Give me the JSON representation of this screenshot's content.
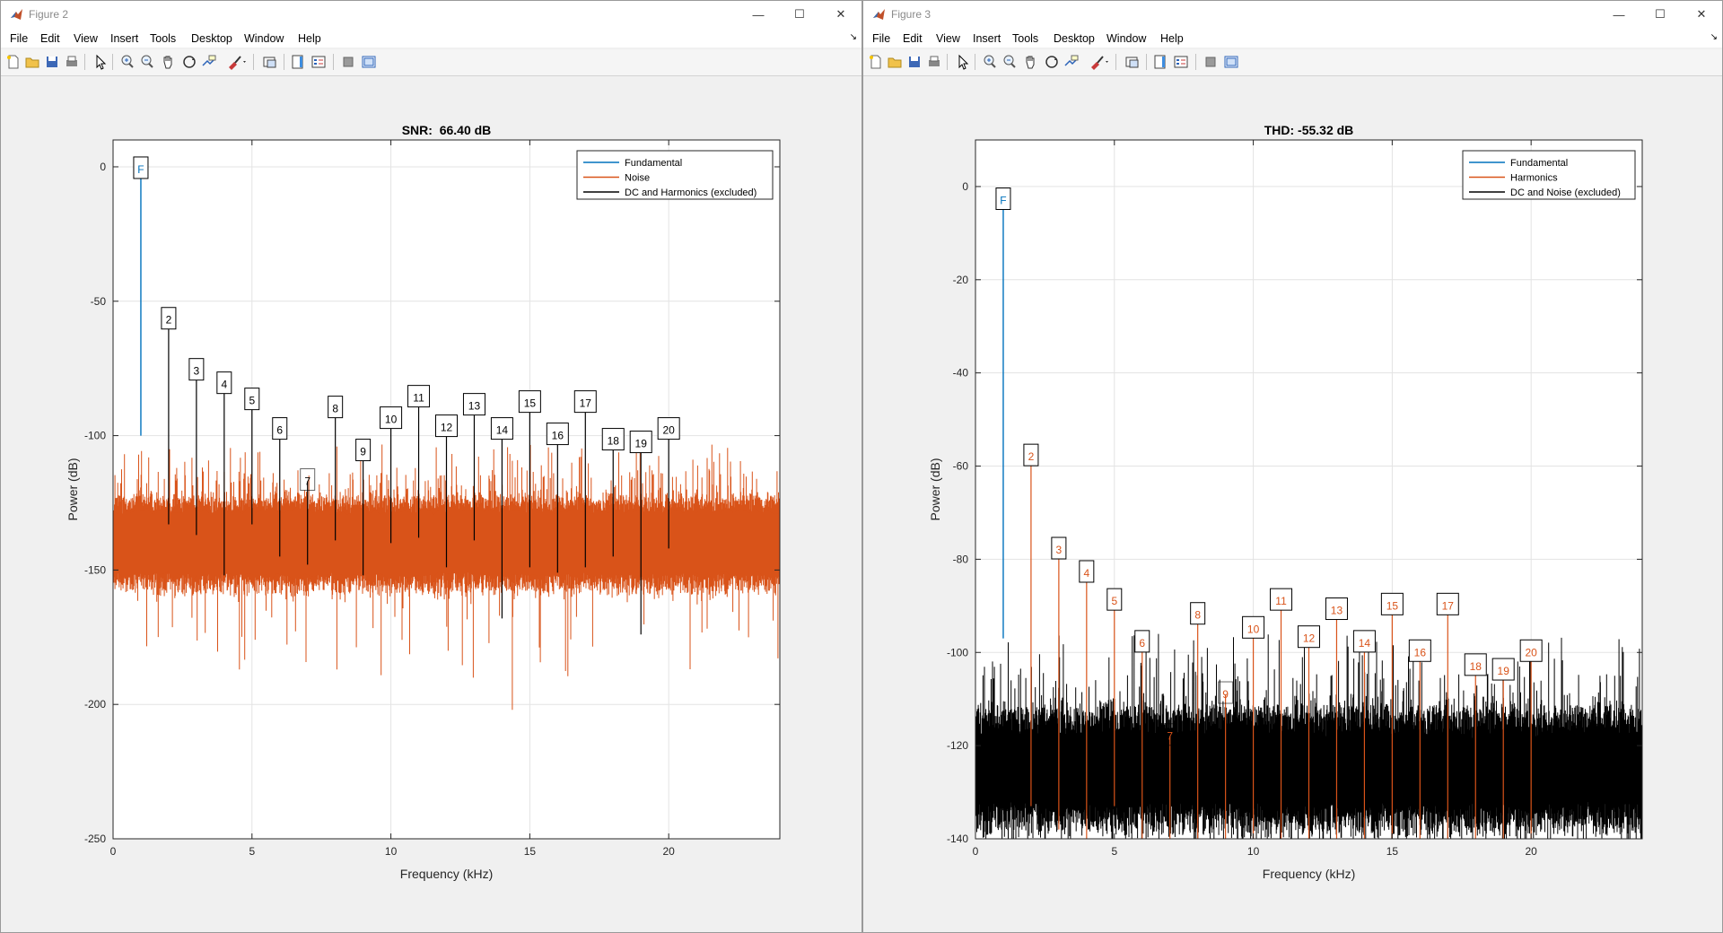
{
  "windows": [
    {
      "title": "Figure 2",
      "menu": [
        "File",
        "Edit",
        "View",
        "Insert",
        "Tools",
        "Desktop",
        "Window",
        "Help"
      ],
      "colors": {
        "fundamental": "#0072bd",
        "noise": "#d95319",
        "excluded": "#000000"
      },
      "chart_data": {
        "type": "line",
        "title": "SNR:  66.40 dB",
        "xlabel": "Frequency (kHz)",
        "ylabel": "Power (dB)",
        "xlim": [
          0,
          24
        ],
        "ylim": [
          -250,
          10
        ],
        "xticks": [
          0,
          5,
          10,
          15,
          20
        ],
        "yticks": [
          0,
          -50,
          -100,
          -150,
          -200,
          -250
        ],
        "grid": true,
        "legend_position": "top-right",
        "legend": [
          "Fundamental",
          "Noise",
          "DC and Harmonics (excluded)"
        ],
        "fundamental": {
          "label": "F",
          "x": 1,
          "y": -1,
          "floor": -100
        },
        "markers": [
          {
            "label": "2",
            "x": 2,
            "y": -57,
            "low": -133
          },
          {
            "label": "3",
            "x": 3,
            "y": -76,
            "low": -137
          },
          {
            "label": "4",
            "x": 4,
            "y": -81,
            "low": -152
          },
          {
            "label": "5",
            "x": 5,
            "y": -87,
            "low": -133
          },
          {
            "label": "6",
            "x": 6,
            "y": -98,
            "low": -145
          },
          {
            "label": "7",
            "x": 7,
            "y": -117,
            "low": -148
          },
          {
            "label": "8",
            "x": 8,
            "y": -90,
            "low": -139
          },
          {
            "label": "9",
            "x": 9,
            "y": -106,
            "low": -152
          },
          {
            "label": "10",
            "x": 10,
            "y": -94,
            "low": -140
          },
          {
            "label": "11",
            "x": 11,
            "y": -86,
            "low": -138
          },
          {
            "label": "12",
            "x": 12,
            "y": -97,
            "low": -149
          },
          {
            "label": "13",
            "x": 13,
            "y": -89,
            "low": -139
          },
          {
            "label": "14",
            "x": 14,
            "y": -98,
            "low": -168
          },
          {
            "label": "15",
            "x": 15,
            "y": -88,
            "low": -149
          },
          {
            "label": "16",
            "x": 16,
            "y": -100,
            "low": -151
          },
          {
            "label": "17",
            "x": 17,
            "y": -88,
            "low": -149
          },
          {
            "label": "18",
            "x": 18,
            "y": -102,
            "low": -145
          },
          {
            "label": "19",
            "x": 19,
            "y": -103,
            "low": -174
          },
          {
            "label": "20",
            "x": 20,
            "y": -98,
            "low": -142
          }
        ],
        "noise_band": {
          "median": -140,
          "upper": -125,
          "lower": -155,
          "spike_max": -103,
          "dip_min": -202
        }
      }
    },
    {
      "title": "Figure 3",
      "menu": [
        "File",
        "Edit",
        "View",
        "Insert",
        "Tools",
        "Desktop",
        "Window",
        "Help"
      ],
      "colors": {
        "fundamental": "#0072bd",
        "harmonics": "#d95319",
        "excluded": "#000000"
      },
      "chart_data": {
        "type": "line",
        "title": "THD: -55.32 dB",
        "xlabel": "Frequency (kHz)",
        "ylabel": "Power (dB)",
        "xlim": [
          0,
          24
        ],
        "ylim": [
          -140,
          10
        ],
        "xticks": [
          0,
          5,
          10,
          15,
          20
        ],
        "yticks": [
          0,
          -20,
          -40,
          -60,
          -80,
          -100,
          -120,
          -140
        ],
        "grid": true,
        "legend_position": "top-right",
        "legend": [
          "Fundamental",
          "Harmonics",
          "DC and Noise (excluded)"
        ],
        "fundamental": {
          "label": "F",
          "x": 1,
          "y": -3,
          "floor": -97
        },
        "markers": [
          {
            "label": "2",
            "x": 2,
            "y": -58,
            "low": -133
          },
          {
            "label": "3",
            "x": 3,
            "y": -78,
            "low": -138
          },
          {
            "label": "4",
            "x": 4,
            "y": -83,
            "low": -140
          },
          {
            "label": "5",
            "x": 5,
            "y": -89,
            "low": -133
          },
          {
            "label": "6",
            "x": 6,
            "y": -98,
            "low": -140
          },
          {
            "label": "7",
            "x": 7,
            "y": -118,
            "low": -140
          },
          {
            "label": "8",
            "x": 8,
            "y": -92,
            "low": -140
          },
          {
            "label": "9",
            "x": 9,
            "y": -109,
            "low": -140
          },
          {
            "label": "10",
            "x": 10,
            "y": -95,
            "low": -140
          },
          {
            "label": "11",
            "x": 11,
            "y": -89,
            "low": -140
          },
          {
            "label": "12",
            "x": 12,
            "y": -97,
            "low": -140
          },
          {
            "label": "13",
            "x": 13,
            "y": -91,
            "low": -140
          },
          {
            "label": "14",
            "x": 14,
            "y": -98,
            "low": -140
          },
          {
            "label": "15",
            "x": 15,
            "y": -90,
            "low": -140
          },
          {
            "label": "16",
            "x": 16,
            "y": -100,
            "low": -140
          },
          {
            "label": "17",
            "x": 17,
            "y": -90,
            "low": -140
          },
          {
            "label": "18",
            "x": 18,
            "y": -103,
            "low": -140
          },
          {
            "label": "19",
            "x": 19,
            "y": -104,
            "low": -140
          },
          {
            "label": "20",
            "x": 20,
            "y": -100,
            "low": -140
          }
        ],
        "noise_band": {
          "median": -124,
          "upper": -114,
          "lower": -136,
          "spike_max": -96,
          "dip_min": -140
        }
      }
    }
  ]
}
